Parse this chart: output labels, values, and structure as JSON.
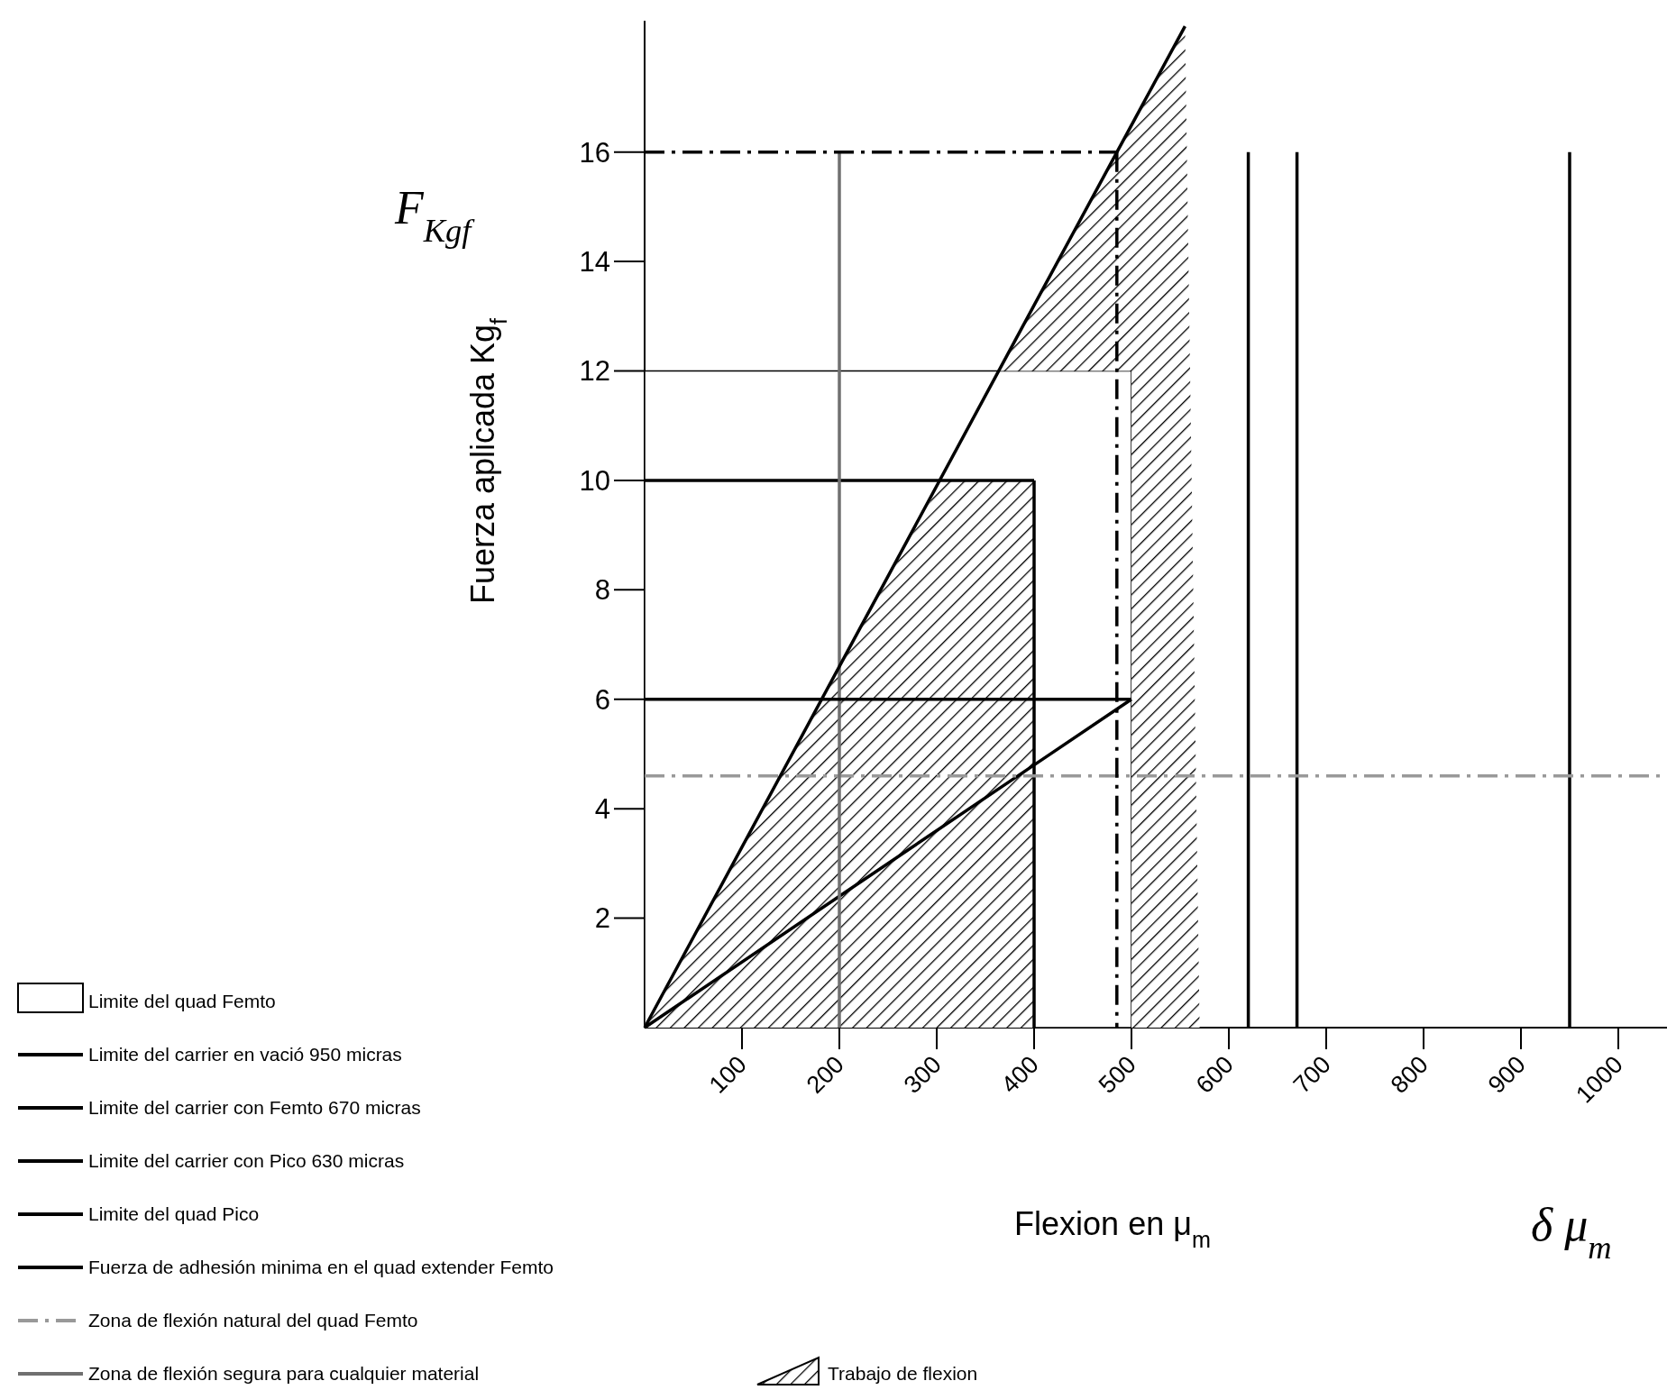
{
  "chart_data": {
    "type": "line",
    "xlabel": "Flexion en μ$_{m}$",
    "ylabel": "Fuerza aplicada Kg$_{f}$",
    "annotations": [
      "F$_{Kgf}$",
      "δ μ$_{m}$"
    ],
    "xlim": [
      0,
      1050
    ],
    "ylim": [
      0,
      18.4
    ],
    "xticks": [
      100,
      200,
      300,
      400,
      500,
      600,
      700,
      800,
      900,
      1000
    ],
    "yticks": [
      2,
      4,
      6,
      8,
      10,
      12,
      14,
      16
    ],
    "legend": "bottom left",
    "marker": "none",
    "grid": false,
    "series": [
      {
        "name": "Limite del quad Femto",
        "type": "area",
        "color": "#ffffff",
        "x": [
          0,
          0,
          500,
          500
        ],
        "values": [
          0,
          12,
          12,
          0
        ]
      },
      {
        "name": "Trabajo de flexion",
        "type": "area",
        "color": "#000000",
        "x": [
          0,
          305,
          400,
          400
        ],
        "values": [
          0,
          10,
          10,
          0
        ]
      },
      {
        "type": "area",
        "color": "#000000",
        "x": [
          364,
          555,
          570,
          500,
          500
        ],
        "values": [
          12,
          18.3,
          0,
          0,
          12
        ]
      },
      {
        "name": "Limite del carrier en vació 950 micras",
        "color": "#000000",
        "x": [
          950,
          950
        ],
        "values": [
          0,
          16
        ]
      },
      {
        "name": "Limite del carrier con Femto 670 micras",
        "color": "#000000",
        "x": [
          670,
          670
        ],
        "values": [
          0,
          16
        ]
      },
      {
        "name": "Limite del carrier con Pico 630 micras",
        "color": "#000000",
        "x": [
          620,
          620
        ],
        "values": [
          0,
          16
        ]
      },
      {
        "name": "Limite del quad Pico",
        "color": "#000000",
        "x": [
          0,
          400
        ],
        "values": [
          10,
          10
        ]
      },
      {
        "color": "#000000",
        "x": [
          400,
          400
        ],
        "values": [
          10,
          0
        ]
      },
      {
        "name": "Fuerza de adhesión minima en el quad extender Femto",
        "color": "#000000",
        "x": [
          0,
          200,
          400,
          500
        ],
        "values": [
          0,
          2.4,
          4.8,
          6
        ]
      },
      {
        "name": "Zona de flexión natural del quad Femto",
        "color": "#999999",
        "line_style": "dashed",
        "x": [
          0,
          1050
        ],
        "values": [
          4.6,
          4.6
        ]
      },
      {
        "name": "Zona de flexión segura para cualquier material",
        "color": "#707070",
        "x": [
          200,
          200
        ],
        "values": [
          0,
          16
        ]
      },
      {
        "color": "#000000",
        "x": [
          0,
          200,
          400,
          555
        ],
        "values": [
          0,
          6.6,
          13.2,
          18.3
        ]
      },
      {
        "color": "#000000",
        "x": [
          0,
          250,
          500
        ],
        "values": [
          6,
          6,
          6
        ]
      },
      {
        "color": "#000000",
        "line_style": "dashed",
        "x": [
          0,
          485
        ],
        "values": [
          16,
          16
        ]
      },
      {
        "color": "#000000",
        "line_style": "dashed",
        "x": [
          485,
          485
        ],
        "values": [
          16,
          0
        ]
      }
    ]
  }
}
